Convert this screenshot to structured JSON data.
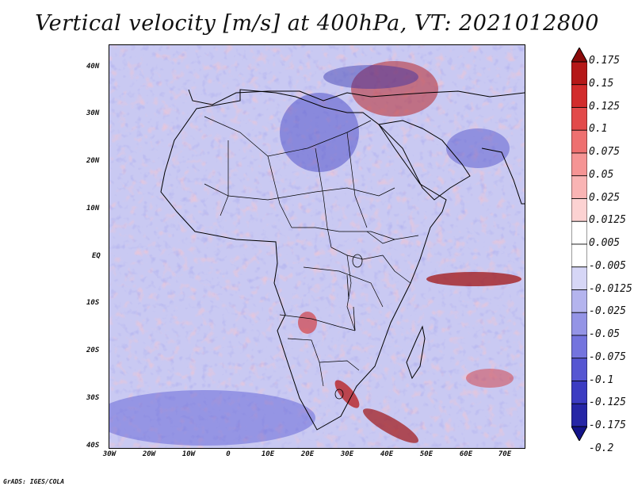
{
  "title": "Vertical velocity [m/s] at 400hPa, VT: 2021012800",
  "footer": "GrADS: IGES/COLA",
  "y_axis_labels": [
    "40N",
    "30N",
    "20N",
    "10N",
    "EQ",
    "10S",
    "20S",
    "30S",
    "40S"
  ],
  "x_axis_labels": [
    "30W",
    "20W",
    "10W",
    "0",
    "10E",
    "20E",
    "30E",
    "40E",
    "50E",
    "60E",
    "70E"
  ],
  "colorbar": {
    "labels": [
      "0.175",
      "0.15",
      "0.125",
      "0.1",
      "0.075",
      "0.05",
      "0.025",
      "0.0125",
      "0.005",
      "-0.005",
      "-0.0125",
      "-0.025",
      "-0.05",
      "-0.075",
      "-0.1",
      "-0.125",
      "-0.175",
      "-0.2"
    ],
    "colors": [
      "#8b0a0a",
      "#b51818",
      "#d22c2c",
      "#e24a4a",
      "#ee7070",
      "#f59494",
      "#f9b4b4",
      "#fcd2d2",
      "#ffffff",
      "#ffffff",
      "#d6d6f6",
      "#b4b4ee",
      "#9494e6",
      "#7474de",
      "#5656d2",
      "#3c3cc2",
      "#2626a6",
      "#14148a"
    ]
  },
  "map_colors": {
    "background": "#c9c9f2",
    "land_tint": "#e9d2e6",
    "positive": "#e24a4a",
    "strong_positive": "#a01414",
    "negative": "#5656d2",
    "strong_negative": "#2626a6",
    "coast": "#000000"
  }
}
